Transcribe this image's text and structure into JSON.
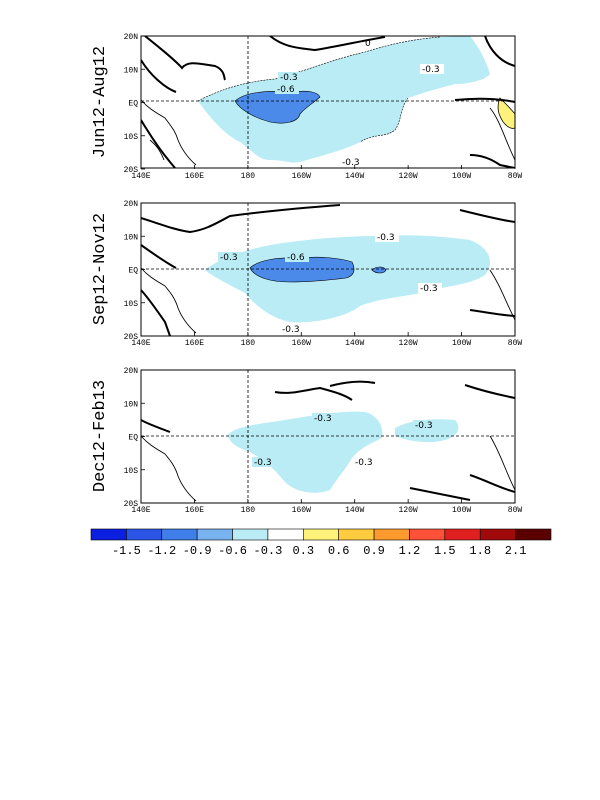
{
  "panels": [
    {
      "title": "Jun12-Aug12",
      "contour_labels": [
        "-0.3",
        "-0.3",
        "-0.6",
        "-0.3",
        "0"
      ]
    },
    {
      "title": "Sep12-Nov12",
      "contour_labels": [
        "-0.3",
        "-0.3",
        "-0.6",
        "-0.3",
        "-0.3"
      ]
    },
    {
      "title": "Dec12-Feb13",
      "contour_labels": [
        "-0.3",
        "-0.3",
        "-0.3",
        "-0.3"
      ]
    }
  ],
  "lat_ticks": [
    "20N",
    "10N",
    "EQ",
    "10S",
    "20S"
  ],
  "lon_ticks": [
    "140E",
    "160E",
    "180",
    "160W",
    "140W",
    "120W",
    "100W",
    "80W"
  ],
  "colorbar": {
    "labels": [
      "-1.5",
      "-1.2",
      "-0.9",
      "-0.6",
      "-0.3",
      "0.3",
      "0.6",
      "0.9",
      "1.2",
      "1.5",
      "1.8",
      "2.1"
    ],
    "colors": [
      "#0a1fe0",
      "#2a55e6",
      "#3f7fe9",
      "#78b2ef",
      "#b9ecf5",
      "#ffffff",
      "#fff27a",
      "#ffcc40",
      "#ff9a2e",
      "#ff5038",
      "#e0201e",
      "#a00a0a",
      "#5a0000"
    ]
  },
  "colors": {
    "light_blue": "#b9ecf5",
    "mid_blue": "#4b8ae9",
    "yellow": "#fff27a"
  }
}
